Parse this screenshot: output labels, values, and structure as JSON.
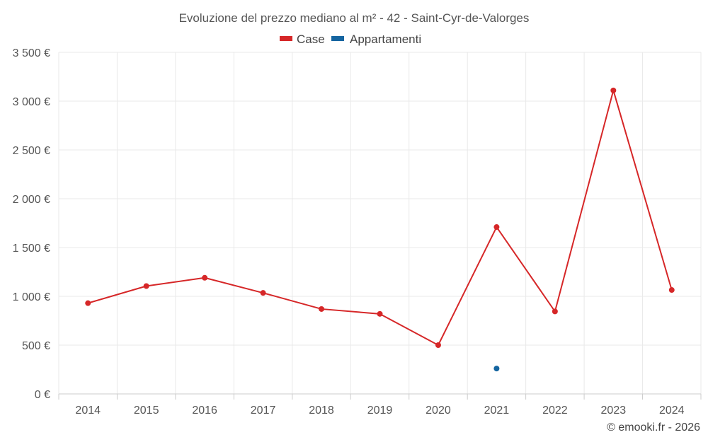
{
  "chart_data": {
    "type": "line",
    "title": "Evoluzione del prezzo mediano al m² - 42 - Saint-Cyr-de-Valorges",
    "categories": [
      "2014",
      "2015",
      "2016",
      "2017",
      "2018",
      "2019",
      "2020",
      "2021",
      "2022",
      "2023",
      "2024"
    ],
    "ylim": [
      0,
      3500
    ],
    "y_ticks": [
      0,
      500,
      1000,
      1500,
      2000,
      2500,
      3000,
      3500
    ],
    "y_tick_labels": [
      "0 €",
      "500 €",
      "1 000 €",
      "1 500 €",
      "2 000 €",
      "2 500 €",
      "3 000 €",
      "3 500 €"
    ],
    "grid": true,
    "legend_position": "top-center",
    "series": [
      {
        "name": "Case",
        "color": "#d62728",
        "values": [
          930,
          1105,
          1190,
          1035,
          870,
          820,
          500,
          1710,
          845,
          3110,
          1065
        ]
      },
      {
        "name": "Appartamenti",
        "color": "#1565a0",
        "values": [
          null,
          null,
          null,
          null,
          null,
          null,
          null,
          260,
          null,
          null,
          null
        ]
      }
    ],
    "credit": "© emooki.fr - 2026"
  }
}
